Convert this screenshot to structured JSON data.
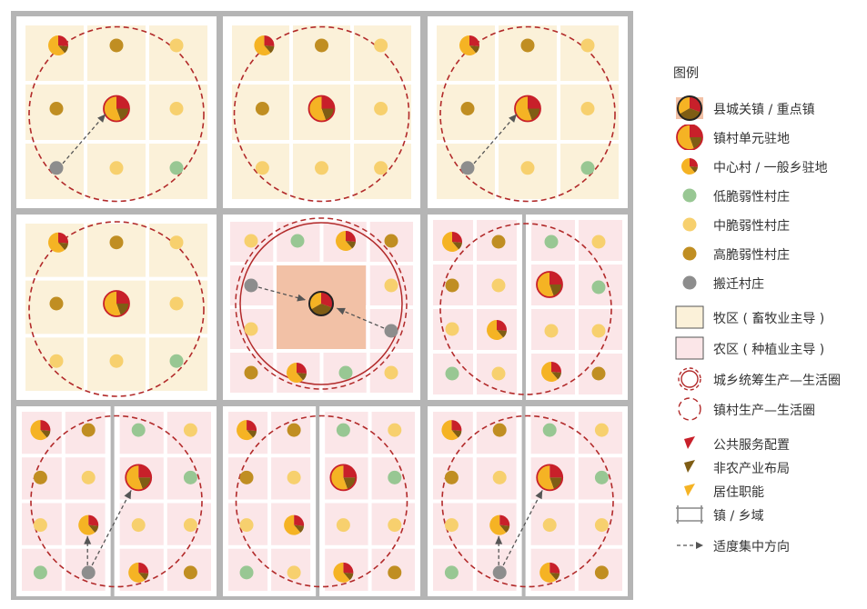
{
  "legend": {
    "title": "图例",
    "items": [
      {
        "key": "county_town",
        "label": "县城关镇 / 重点镇",
        "icon": "county-town-icon"
      },
      {
        "key": "town_unit",
        "label": "镇村单元驻地",
        "icon": "town-unit-seat-icon"
      },
      {
        "key": "central_village",
        "label": "中心村 / 一般乡驻地",
        "icon": "central-village-icon"
      },
      {
        "key": "low_vuln",
        "label": "低脆弱性村庄",
        "icon": "low-vulnerability-village-icon"
      },
      {
        "key": "mid_vuln",
        "label": "中脆弱性村庄",
        "icon": "medium-vulnerability-village-icon"
      },
      {
        "key": "high_vuln",
        "label": "高脆弱性村庄",
        "icon": "high-vulnerability-village-icon"
      },
      {
        "key": "relocated",
        "label": "搬迁村庄",
        "icon": "relocated-village-icon"
      },
      {
        "key": "pastoral",
        "label": "牧区 ( 畜牧业主导 )",
        "icon": "pastoral-area-swatch"
      },
      {
        "key": "farming",
        "label": "农区 ( 种植业主导 )",
        "icon": "farming-area-swatch"
      },
      {
        "key": "urban_rural_circle",
        "label": "城乡统筹生产—生活圈",
        "icon": "urban-rural-circle-icon"
      },
      {
        "key": "town_village_circle",
        "label": "镇村生产—生活圈",
        "icon": "town-village-circle-icon"
      },
      {
        "key": "public_service",
        "label": "公共服务配置",
        "icon": "public-service-wedge-icon"
      },
      {
        "key": "non_agri",
        "label": "非农产业布局",
        "icon": "non-agricultural-wedge-icon"
      },
      {
        "key": "residence",
        "label": "居住职能",
        "icon": "residence-wedge-icon"
      },
      {
        "key": "township",
        "label": "镇 / 乡域",
        "icon": "township-boundary-icon"
      },
      {
        "key": "direction",
        "label": "适度集中方向",
        "icon": "concentration-arrow-icon"
      }
    ]
  },
  "colors": {
    "pastoral": "#fbf1d9",
    "farming": "#fbe6e8",
    "county_core": "#f2c1a6",
    "boundary": "#b5b5b5",
    "circle": "#b22a2a",
    "town_fill": "#f5b324",
    "public_service": "#c8202a",
    "non_agri": "#7f5d14",
    "low": "#98c793",
    "mid": "#f7d06e",
    "high": "#c08e22",
    "relocated": "#8d8d8d",
    "arrow": "#555555"
  }
}
